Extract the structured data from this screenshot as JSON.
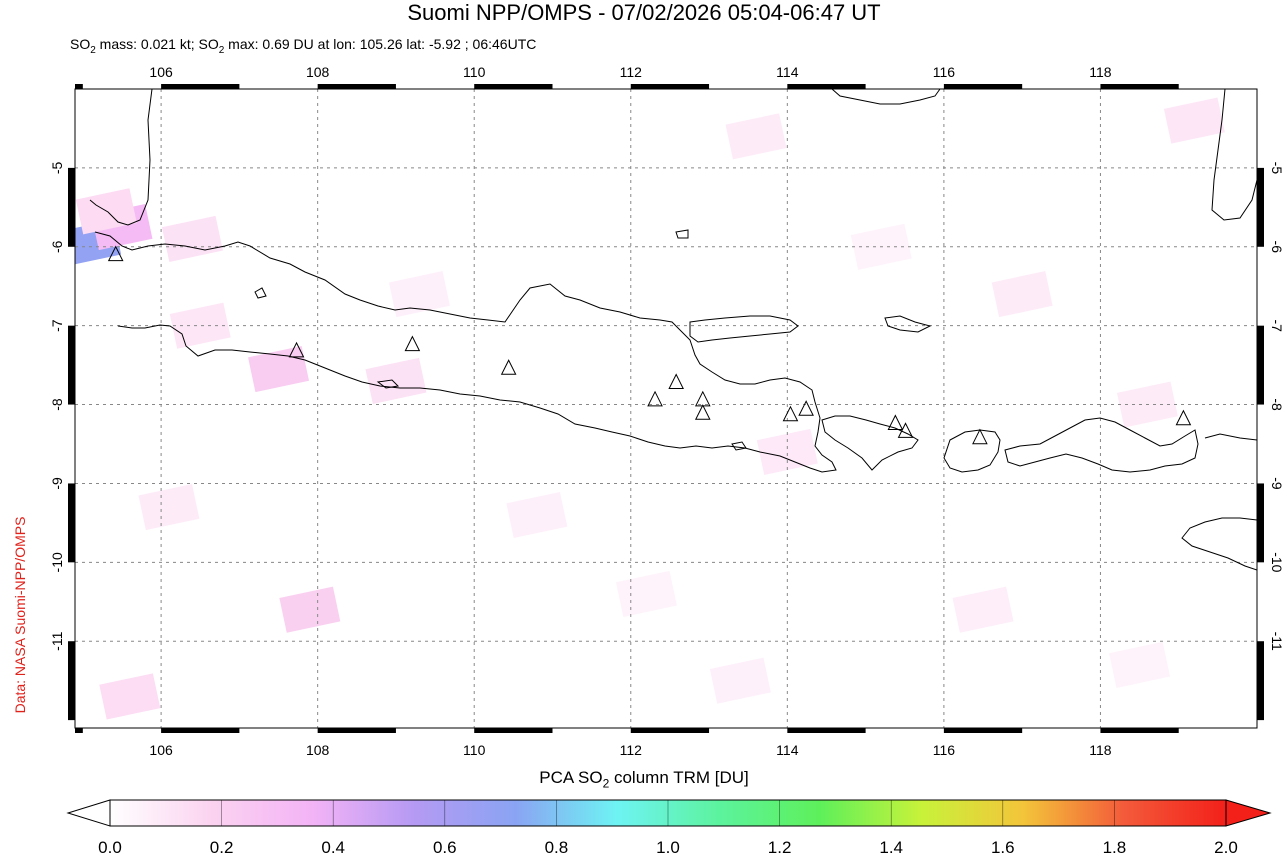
{
  "title": "Suomi NPP/OMPS - 07/02/2026 05:04-06:47 UT",
  "subtitle": {
    "p1": "SO",
    "p1_sub": "2",
    "p2": " mass: 0.021 kt; SO",
    "p2_sub": "2",
    "p3": " max: 0.69 DU at lon: 105.26 lat: -5.92 ; 06:46UTC"
  },
  "credit": "Data: NASA Suomi-NPP/OMPS",
  "colorbar": {
    "label_main": "PCA SO",
    "label_sub": "2",
    "label_tail": " column TRM [DU]",
    "ticks": [
      "0.0",
      "0.2",
      "0.4",
      "0.6",
      "0.8",
      "1.0",
      "1.2",
      "1.4",
      "1.6",
      "1.8",
      "2.0"
    ],
    "colors": [
      "#ffffff",
      "#fbd3f0",
      "#f3b3f6",
      "#b59af3",
      "#8aa4f3",
      "#6ef3f3",
      "#5cf39e",
      "#5ef05a",
      "#c8f23a",
      "#f3c53a",
      "#f35a3a",
      "#f3201a"
    ]
  },
  "map": {
    "lon_ticks": [
      "106",
      "108",
      "110",
      "112",
      "114",
      "116",
      "118"
    ],
    "lat_ticks": [
      "-5",
      "-6",
      "-7",
      "-8",
      "-9",
      "-10",
      "-11"
    ],
    "volcano_count_label": ""
  },
  "chart_data": {
    "type": "heatmap",
    "title": "Suomi NPP/OMPS - 07/02/2026 05:04-06:47 UT",
    "xlabel": "",
    "ylabel": "",
    "xlim": [
      104.9,
      120.0
    ],
    "ylim": [
      -12.1,
      -4.0
    ],
    "grid": true,
    "colorbar_label": "PCA SO2 column TRM [DU]",
    "colorbar_range": [
      0.0,
      2.0
    ],
    "so2_max": {
      "value_du": 0.69,
      "lon": 105.26,
      "lat": -5.92,
      "time": "06:46UTC"
    },
    "so2_mass_kt": 0.021,
    "volcanoes": [
      {
        "lon": 105.42,
        "lat": -6.1
      },
      {
        "lon": 107.73,
        "lat": -7.32
      },
      {
        "lon": 109.21,
        "lat": -7.24
      },
      {
        "lon": 110.44,
        "lat": -7.54
      },
      {
        "lon": 112.31,
        "lat": -7.94
      },
      {
        "lon": 112.58,
        "lat": -7.72
      },
      {
        "lon": 112.92,
        "lat": -7.94
      },
      {
        "lon": 112.92,
        "lat": -8.11
      },
      {
        "lon": 114.04,
        "lat": -8.13
      },
      {
        "lon": 114.24,
        "lat": -8.06
      },
      {
        "lon": 115.38,
        "lat": -8.24
      },
      {
        "lon": 115.51,
        "lat": -8.34
      },
      {
        "lon": 116.46,
        "lat": -8.42
      },
      {
        "lon": 119.06,
        "lat": -8.18
      }
    ],
    "pixels": [
      {
        "lon": 105.1,
        "lat": -5.95,
        "v": 0.69
      },
      {
        "lon": 105.5,
        "lat": -5.75,
        "v": 0.32
      },
      {
        "lon": 105.3,
        "lat": -5.55,
        "v": 0.15
      },
      {
        "lon": 106.4,
        "lat": -5.9,
        "v": 0.12
      },
      {
        "lon": 107.5,
        "lat": -7.55,
        "v": 0.22
      },
      {
        "lon": 109.0,
        "lat": -7.7,
        "v": 0.12
      },
      {
        "lon": 107.9,
        "lat": -10.6,
        "v": 0.2
      },
      {
        "lon": 105.6,
        "lat": -11.7,
        "v": 0.14
      },
      {
        "lon": 106.5,
        "lat": -7.0,
        "v": 0.1
      },
      {
        "lon": 113.6,
        "lat": -4.6,
        "v": 0.08
      },
      {
        "lon": 117.0,
        "lat": -6.6,
        "v": 0.08
      },
      {
        "lon": 119.2,
        "lat": -4.4,
        "v": 0.1
      },
      {
        "lon": 118.6,
        "lat": -8.0,
        "v": 0.08
      },
      {
        "lon": 114.0,
        "lat": -8.6,
        "v": 0.09
      },
      {
        "lon": 109.3,
        "lat": -6.6,
        "v": 0.06
      },
      {
        "lon": 110.8,
        "lat": -9.4,
        "v": 0.06
      },
      {
        "lon": 112.2,
        "lat": -10.4,
        "v": 0.05
      },
      {
        "lon": 116.5,
        "lat": -10.6,
        "v": 0.07
      },
      {
        "lon": 118.5,
        "lat": -11.3,
        "v": 0.05
      },
      {
        "lon": 106.1,
        "lat": -9.3,
        "v": 0.08
      },
      {
        "lon": 113.4,
        "lat": -11.5,
        "v": 0.06
      },
      {
        "lon": 115.2,
        "lat": -6.0,
        "v": 0.05
      }
    ]
  }
}
